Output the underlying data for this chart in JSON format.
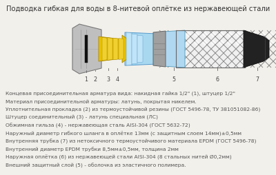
{
  "title": "Подводка гибкая для воды в 8-нитевой оплётке из нержавеющей стали",
  "title_fontsize": 7.2,
  "bg_color": "#f2f0eb",
  "text_color": "#555555",
  "body_lines": [
    "Концевая присоединительная арматура вида: накидная гайка 1/2\" (1), штуцер 1/2\"",
    "Материал присоединительной арматуры: латунь, покрытая никелем.",
    "Уплотнительная прокладка (2) из термоустойчивой резины (ГОСТ 5496-78, ТУ 381051082-86)",
    "Штуцер соединительный (3) - латунь специальная (ЛС)",
    "Обжимная гильза (4) - нержавеющая сталь AISI-304 (ГОСТ 5632-72)",
    "Наружный диаметр гибкого шланга в оплётке 13мм (с защитным слоем 14мм)±0,5мм",
    "Внутренняя трубка (7) из нетоксичного термоустойчивого материала EPDM (ГОСТ 5496-78)",
    "Внутренний диаметр EPDM трубки 8,5мм±0,5мм, толщина 2мм",
    "Наружная оплётка (6) из нержавеющей стали AISI-304 (8 стальных нитей Ø0,2мм)",
    "Внешний защитный слой (5) - оболочка из эластичного полимера."
  ],
  "body_fontsize": 5.4,
  "label_fontsize": 5.8
}
